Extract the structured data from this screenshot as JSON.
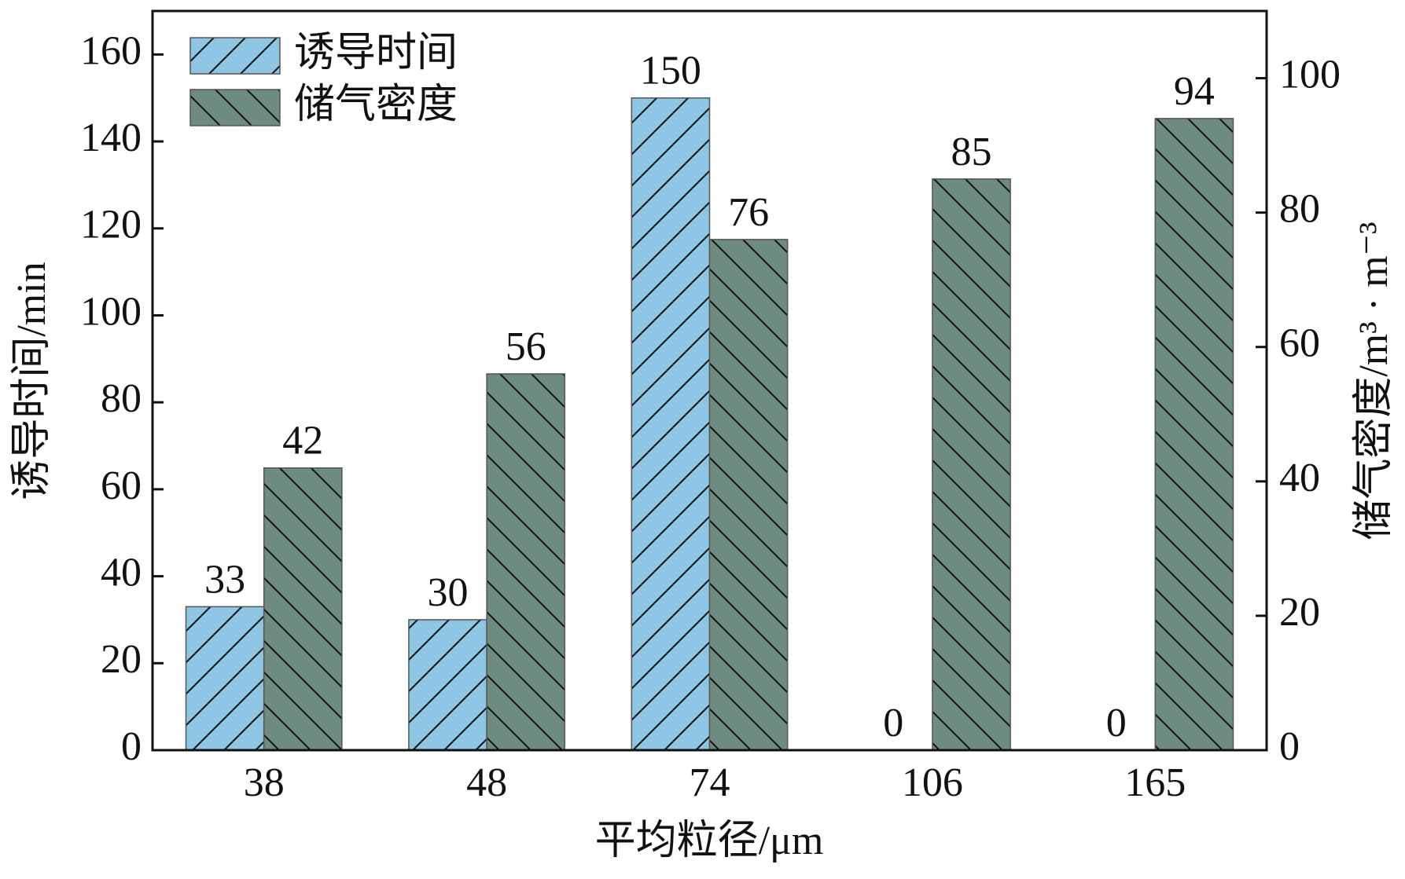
{
  "chart_data": {
    "type": "bar",
    "xlabel": "平均粒径/μm",
    "ylabel": "诱导时间/min",
    "y2label": "储气密度/m³ · m⁻³",
    "categories": [
      "38",
      "48",
      "74",
      "106",
      "165"
    ],
    "series": [
      {
        "name": "诱导时间",
        "color": "#8ec5e3",
        "hatch": "/",
        "values": [
          33,
          30,
          150,
          0,
          0
        ]
      },
      {
        "name": "储气密度",
        "color": "#6e8b80",
        "hatch": "\\",
        "axis": "y2",
        "values": [
          42,
          56,
          76,
          85,
          94
        ]
      }
    ],
    "ylim": [
      0,
      170
    ],
    "yticks": [
      0,
      20,
      40,
      60,
      80,
      100,
      120,
      140,
      160
    ],
    "y2lim": [
      0,
      110
    ],
    "y2ticks": [
      0,
      20,
      40,
      60,
      80,
      100
    ],
    "legend": "upper left",
    "grid": false
  }
}
